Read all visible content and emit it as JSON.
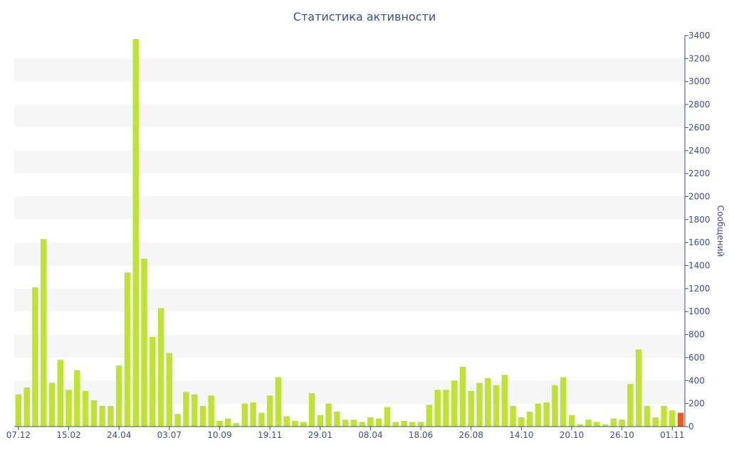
{
  "colors": {
    "bar": "#bfe234",
    "bar_highlight": "#e65a26",
    "text": "#3e4e8c",
    "axis": "#3e4e8c",
    "band": "#f6f6f6"
  },
  "chart_data": {
    "type": "bar",
    "title": "Статистика активности",
    "xlabel": "",
    "ylabel": "Сообщений",
    "ylim": [
      0,
      3400
    ],
    "y_ticks": [
      0,
      200,
      400,
      600,
      800,
      1000,
      1200,
      1400,
      1600,
      1800,
      2000,
      2200,
      2400,
      2600,
      2800,
      3000,
      3200,
      3400
    ],
    "x_tick_labels": [
      {
        "label": "07.12",
        "index": 0
      },
      {
        "label": "15.02",
        "index": 6
      },
      {
        "label": "24.04",
        "index": 12
      },
      {
        "label": "03.07",
        "index": 18
      },
      {
        "label": "10.09",
        "index": 24
      },
      {
        "label": "19.11",
        "index": 30
      },
      {
        "label": "29.01",
        "index": 36
      },
      {
        "label": "08.04",
        "index": 42
      },
      {
        "label": "18.06",
        "index": 48
      },
      {
        "label": "26.08",
        "index": 54
      },
      {
        "label": "14.10",
        "index": 60
      },
      {
        "label": "20.10",
        "index": 66
      },
      {
        "label": "26.10",
        "index": 72
      },
      {
        "label": "01.11",
        "index": 78
      }
    ],
    "values": [
      280,
      340,
      1210,
      1630,
      380,
      580,
      320,
      490,
      310,
      230,
      180,
      180,
      530,
      1340,
      3370,
      1460,
      780,
      1030,
      640,
      110,
      300,
      280,
      180,
      270,
      50,
      70,
      30,
      200,
      210,
      120,
      270,
      430,
      90,
      50,
      40,
      290,
      100,
      200,
      130,
      60,
      60,
      40,
      80,
      70,
      170,
      40,
      50,
      40,
      40,
      190,
      320,
      320,
      400,
      520,
      310,
      380,
      420,
      360,
      450,
      180,
      80,
      130,
      200,
      210,
      360,
      430,
      100,
      20,
      60,
      40,
      20,
      70,
      60,
      370,
      670,
      180,
      80,
      180,
      140,
      120
    ],
    "highlight_index": 79,
    "grid": "alternating horizontal bands"
  }
}
